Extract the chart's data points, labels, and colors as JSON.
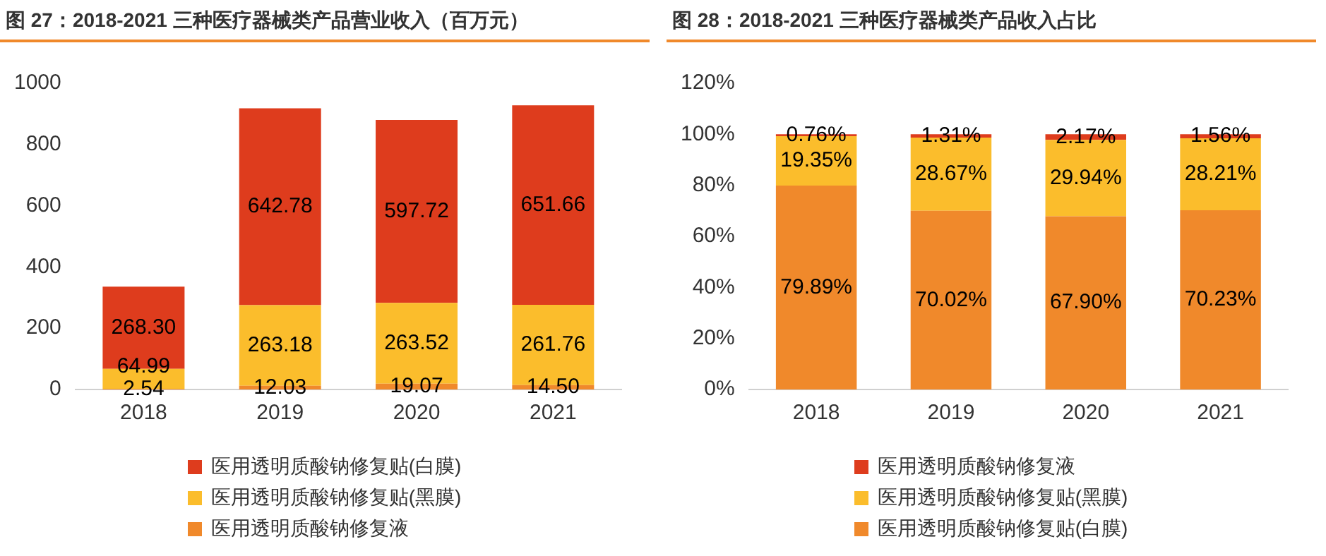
{
  "chart_data": [
    {
      "type": "bar",
      "title": "图 27：2018-2021 三种医疗器械类产品营业收入（百万元）",
      "categories": [
        "2018",
        "2019",
        "2020",
        "2021"
      ],
      "stacked": true,
      "legend": "bottom",
      "ylim": [
        0,
        1000
      ],
      "yticks": [
        0,
        200,
        400,
        600,
        800,
        1000
      ],
      "series": [
        {
          "name": "医用透明质酸钠修复液",
          "color": "#f0892b",
          "values": [
            2.54,
            12.03,
            19.07,
            14.5
          ],
          "value_labels": [
            "2.54",
            "12.03",
            "19.07",
            "14.50"
          ]
        },
        {
          "name": "医用透明质酸钠修复贴(黑膜)",
          "color": "#fbbd2c",
          "values": [
            64.99,
            263.18,
            263.52,
            261.76
          ],
          "value_labels": [
            "64.99",
            "263.18",
            "263.52",
            "261.76"
          ]
        },
        {
          "name": "医用透明质酸钠修复贴(白膜)",
          "color": "#de3c1d",
          "values": [
            268.3,
            642.78,
            597.72,
            651.66
          ],
          "value_labels": [
            "268.30",
            "642.78",
            "597.72",
            "651.66"
          ]
        }
      ]
    },
    {
      "type": "bar",
      "title": "图 28：2018-2021 三种医疗器械类产品收入占比",
      "categories": [
        "2018",
        "2019",
        "2020",
        "2021"
      ],
      "stacked": true,
      "legend": "bottom",
      "ylim": [
        0,
        120
      ],
      "yticks": [
        {
          "value": 0,
          "label": "0%"
        },
        {
          "value": 20,
          "label": "20%"
        },
        {
          "value": 40,
          "label": "40%"
        },
        {
          "value": 60,
          "label": "60%"
        },
        {
          "value": 80,
          "label": "80%"
        },
        {
          "value": 100,
          "label": "100%"
        },
        {
          "value": 120,
          "label": "120%"
        }
      ],
      "series": [
        {
          "name": "医用透明质酸钠修复贴(白膜)",
          "color": "#f0892b",
          "values": [
            79.89,
            70.02,
            67.9,
            70.23
          ],
          "value_labels": [
            "79.89%",
            "70.02%",
            "67.90%",
            "70.23%"
          ]
        },
        {
          "name": "医用透明质酸钠修复贴(黑膜)",
          "color": "#fbbd2c",
          "values": [
            19.35,
            28.67,
            29.94,
            28.21
          ],
          "value_labels": [
            "19.35%",
            "28.67%",
            "29.94%",
            "28.21%"
          ]
        },
        {
          "name": "医用透明质酸钠修复液",
          "color": "#de3c1d",
          "values": [
            0.76,
            1.31,
            2.17,
            1.56
          ],
          "value_labels": [
            "0.76%",
            "1.31%",
            "2.17%",
            "1.56%"
          ]
        }
      ]
    }
  ]
}
